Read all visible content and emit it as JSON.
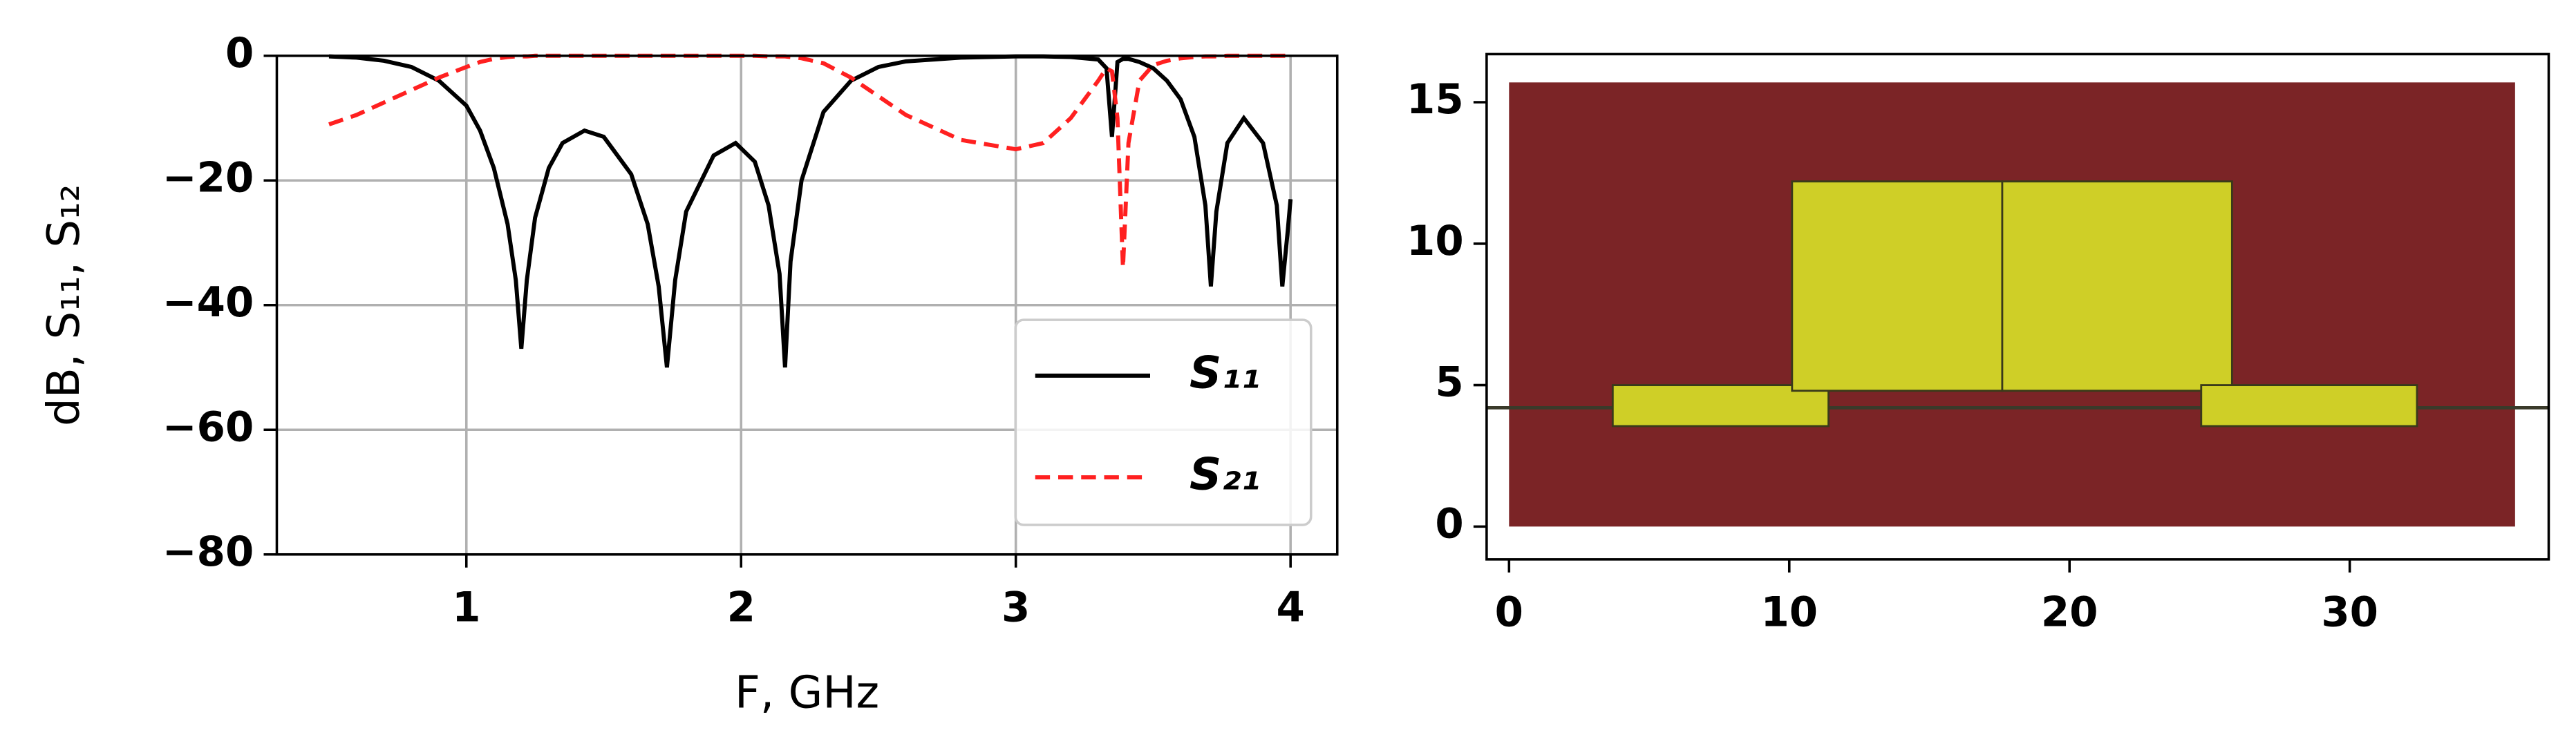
{
  "chart_data": [
    {
      "type": "line",
      "xlabel": "F, GHz",
      "ylabel": "dB, S₁₁, S₁₂",
      "x": [
        0.5,
        0.6,
        0.7,
        0.8,
        0.9,
        1.0,
        1.05,
        1.1,
        1.15,
        1.18,
        1.2,
        1.22,
        1.25,
        1.3,
        1.35,
        1.43,
        1.5,
        1.6,
        1.66,
        1.7,
        1.73,
        1.76,
        1.8,
        1.9,
        1.98,
        2.05,
        2.1,
        2.14,
        2.16,
        2.18,
        2.22,
        2.3,
        2.4,
        2.5,
        2.6,
        2.8,
        3.0,
        3.1,
        3.2,
        3.3,
        3.33,
        3.35,
        3.37,
        3.39,
        3.41,
        3.45,
        3.5,
        3.55,
        3.6,
        3.65,
        3.69,
        3.71,
        3.73,
        3.77,
        3.83,
        3.9,
        3.95,
        3.97,
        3.99,
        4.0
      ],
      "series": [
        {
          "name": "S₁₁",
          "color": "#000000",
          "dash": "solid",
          "values": [
            -0.1,
            -0.3,
            -0.8,
            -1.8,
            -4,
            -8,
            -12,
            -18,
            -27,
            -36,
            -47,
            -36,
            -26,
            -18,
            -14,
            -12,
            -13,
            -19,
            -27,
            -37,
            -50,
            -36,
            -25,
            -16,
            -14,
            -17,
            -24,
            -35,
            -50,
            -33,
            -20,
            -9,
            -4,
            -1.8,
            -0.9,
            -0.3,
            -0.1,
            -0.1,
            -0.2,
            -0.6,
            -2,
            -13,
            -1,
            -0.5,
            -0.5,
            -1,
            -2,
            -4,
            -7,
            -13,
            -24,
            -37,
            -25,
            -14,
            -10,
            -14,
            -24,
            -37,
            -28,
            -23
          ]
        },
        {
          "name": "S₂₁",
          "color": "#ff2020",
          "dash": "dashed",
          "values": [
            -11,
            -9.5,
            -7.5,
            -5.5,
            -3.5,
            -1.8,
            -1,
            -0.5,
            -0.2,
            -0.1,
            -0.1,
            -0.1,
            0,
            0,
            0,
            0,
            0,
            0,
            0,
            0,
            0,
            0,
            0,
            0,
            0,
            0,
            -0.1,
            -0.1,
            -0.1,
            -0.2,
            -0.4,
            -1.2,
            -3.5,
            -6.5,
            -9.5,
            -13.5,
            -15,
            -14,
            -10,
            -4,
            -2,
            -2.5,
            -10,
            -34,
            -14,
            -4,
            -1.5,
            -0.8,
            -0.4,
            -0.2,
            -0.1,
            -0.1,
            -0.1,
            0,
            0,
            0,
            0,
            0,
            0,
            0
          ]
        }
      ],
      "xlim": [
        0.31,
        4.17
      ],
      "ylim": [
        -80,
        0
      ],
      "xticks": [
        1,
        2,
        3,
        4
      ],
      "yticks": [
        0,
        {
          "value": -20,
          "label": "−20"
        },
        {
          "value": -40,
          "label": "−40"
        },
        {
          "value": -60,
          "label": "−60"
        },
        {
          "value": -80,
          "label": "−80"
        }
      ],
      "grid": true,
      "legend": "lower right"
    },
    {
      "type": "layout",
      "shapes": [
        {
          "x": [
            0,
            35.9
          ],
          "y": [
            0,
            15.7
          ],
          "color": "#7b2426"
        },
        {
          "x": [
            3.7,
            11.4
          ],
          "y": [
            3.55,
            5.0
          ],
          "color": "#cfcf27",
          "edgecolor": "#3a3a1a"
        },
        {
          "x": [
            10.1,
            17.6
          ],
          "y": [
            4.8,
            12.2
          ],
          "color": "#cfcf27",
          "edgecolor": "#3a3a1a"
        },
        {
          "x": [
            17.6,
            25.8
          ],
          "y": [
            4.8,
            12.2
          ],
          "color": "#cfcf27",
          "edgecolor": "#3a3a1a"
        },
        {
          "x": [
            24.7,
            32.4
          ],
          "y": [
            3.55,
            5.0
          ],
          "color": "#cfcf27",
          "edgecolor": "#3a3a1a"
        }
      ],
      "hline": {
        "y": 4.2,
        "color": "#3a3a2a"
      },
      "xlim": [
        -0.8,
        37.1
      ],
      "ylim": [
        -1.16,
        16.7
      ],
      "xticks": [
        0,
        10,
        20,
        30
      ],
      "yticks": [
        0,
        5,
        10,
        15
      ],
      "grid": false
    }
  ]
}
